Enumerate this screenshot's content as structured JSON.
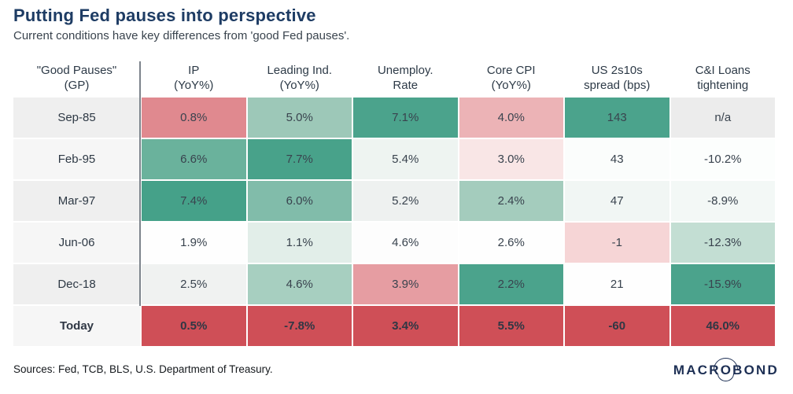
{
  "chart_data": {
    "type": "heatmap",
    "title": "Putting Fed pauses into perspective",
    "subtitle": "Current conditions have key differences from 'good Fed pauses'.",
    "legend_position": "none",
    "row_header": {
      "line1": "\"Good Pauses\"",
      "line2": "(GP)"
    },
    "columns": [
      {
        "line1": "IP",
        "line2": "(YoY%)"
      },
      {
        "line1": "Leading Ind.",
        "line2": "(YoY%)"
      },
      {
        "line1": "Unemploy.",
        "line2": "Rate"
      },
      {
        "line1": "Core CPI",
        "line2": "(YoY%)"
      },
      {
        "line1": "US 2s10s",
        "line2": "spread (bps)"
      },
      {
        "line1": "C&I Loans",
        "line2": "tightening"
      }
    ],
    "rows": [
      {
        "label": "Sep-85",
        "label_bg": "#efefef",
        "bold": false,
        "cells": [
          {
            "value": "0.8%",
            "bg": "#e0898f"
          },
          {
            "value": "5.0%",
            "bg": "#9dc8b8"
          },
          {
            "value": "7.1%",
            "bg": "#4ba38c"
          },
          {
            "value": "4.0%",
            "bg": "#ecb3b6"
          },
          {
            "value": "143",
            "bg": "#4ba38c"
          },
          {
            "value": "n/a",
            "bg": "#ececec"
          }
        ]
      },
      {
        "label": "Feb-95",
        "label_bg": "#f6f6f6",
        "bold": false,
        "cells": [
          {
            "value": "6.6%",
            "bg": "#6ab29c"
          },
          {
            "value": "7.7%",
            "bg": "#48a28a"
          },
          {
            "value": "5.4%",
            "bg": "#eef4f1"
          },
          {
            "value": "3.0%",
            "bg": "#f9e6e6"
          },
          {
            "value": "43",
            "bg": "#fbfdfc"
          },
          {
            "value": "-10.2%",
            "bg": "#fcfefd"
          }
        ]
      },
      {
        "label": "Mar-97",
        "label_bg": "#efefef",
        "bold": false,
        "cells": [
          {
            "value": "7.4%",
            "bg": "#45a189"
          },
          {
            "value": "6.0%",
            "bg": "#81bcaa"
          },
          {
            "value": "5.2%",
            "bg": "#eef1f0"
          },
          {
            "value": "2.4%",
            "bg": "#a4ccbd"
          },
          {
            "value": "47",
            "bg": "#f1f6f4"
          },
          {
            "value": "-8.9%",
            "bg": "#f3f8f6"
          }
        ]
      },
      {
        "label": "Jun-06",
        "label_bg": "#f6f6f6",
        "bold": false,
        "cells": [
          {
            "value": "1.9%",
            "bg": "#fefefe"
          },
          {
            "value": "1.1%",
            "bg": "#e2eee9"
          },
          {
            "value": "4.6%",
            "bg": "#fdfdfd"
          },
          {
            "value": "2.6%",
            "bg": "#fefefe"
          },
          {
            "value": "-1",
            "bg": "#f6d5d6"
          },
          {
            "value": "-12.3%",
            "bg": "#c3ded3"
          }
        ]
      },
      {
        "label": "Dec-18",
        "label_bg": "#efefef",
        "bold": false,
        "cells": [
          {
            "value": "2.5%",
            "bg": "#f0f2f1"
          },
          {
            "value": "4.6%",
            "bg": "#a7cfc0"
          },
          {
            "value": "3.9%",
            "bg": "#e69da2"
          },
          {
            "value": "2.2%",
            "bg": "#4ba38c"
          },
          {
            "value": "21",
            "bg": "#fefefe"
          },
          {
            "value": "-15.9%",
            "bg": "#4ba38c"
          }
        ]
      },
      {
        "label": "Today",
        "label_bg": "#f6f6f6",
        "bold": true,
        "cells": [
          {
            "value": "0.5%",
            "bg": "#cf4f57"
          },
          {
            "value": "-7.8%",
            "bg": "#cf4f57"
          },
          {
            "value": "3.4%",
            "bg": "#cf4f57"
          },
          {
            "value": "5.5%",
            "bg": "#cf4f57"
          },
          {
            "value": "-60",
            "bg": "#cf4f57"
          },
          {
            "value": "46.0%",
            "bg": "#cf4f57"
          }
        ]
      }
    ]
  },
  "colors": {
    "title_navy": "#1e3c64",
    "good_green": "#4ba38c",
    "bad_red": "#cf4f57",
    "divider_gray": "#7d848c"
  },
  "footer": {
    "sources": "Sources: Fed, TCB, BLS, U.S. Department of Treasury.",
    "logo_part1": "MACR",
    "logo_o": "O",
    "logo_part2": "BOND"
  }
}
